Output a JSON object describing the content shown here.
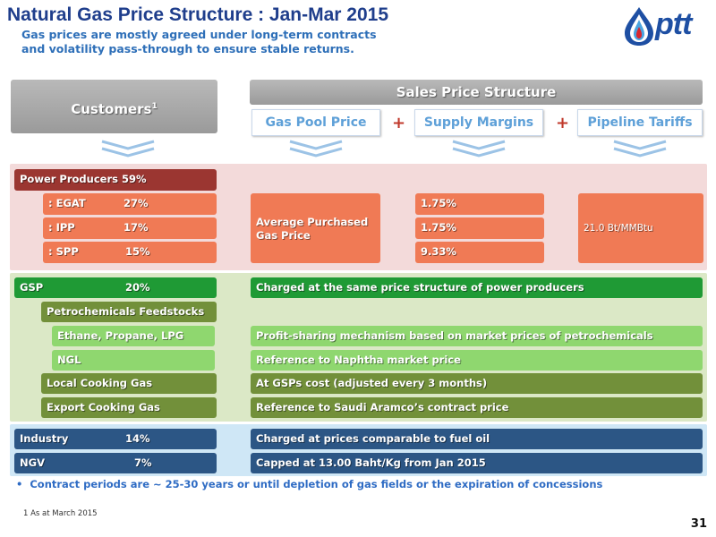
{
  "header": {
    "title": "Natural Gas Price Structure : Jan-Mar 2015",
    "subtitle_line1": "Gas prices are mostly agreed under long-term contracts",
    "subtitle_line2": "and volatility pass-through to ensure stable returns.",
    "logo_text": "ptt"
  },
  "columns": {
    "customers_label": "Customers",
    "customers_sup": "1",
    "sales_structure": "Sales Price Structure",
    "gas_pool": "Gas Pool Price",
    "supply_margins": "Supply Margins",
    "pipeline_tariffs": "Pipeline Tariffs",
    "plus": "+"
  },
  "power": {
    "header_label": "Power Producers 59%",
    "rows": [
      {
        "name": ": EGAT",
        "pct": "27%",
        "margin": "1.75%"
      },
      {
        "name": ": IPP",
        "pct": "17%",
        "margin": "1.75%"
      },
      {
        "name": ": SPP",
        "pct": "15%",
        "margin": "9.33%"
      }
    ],
    "pool_text_line1": "Average Purchased",
    "pool_text_line2": "Gas Price",
    "tariff": "21.0 Bt/MMBtu"
  },
  "gsp": {
    "gsp_name": "GSP",
    "gsp_pct": "20%",
    "gsp_desc": "Charged at the same price structure of power producers",
    "petro": "Petrochemicals Feedstocks",
    "ethane": "Ethane, Propane, LPG",
    "ethane_desc": "Profit-sharing mechanism based on market prices of petrochemicals",
    "ngl": "NGL",
    "ngl_desc": "Reference to Naphtha market price",
    "local": "Local Cooking Gas",
    "local_desc": "At GSPs cost (adjusted every 3 months)",
    "export": "Export Cooking Gas",
    "export_desc": "Reference to Saudi Aramco’s contract price"
  },
  "industry": {
    "industry_name": "Industry",
    "industry_pct": "14%",
    "industry_desc": "Charged at prices comparable to fuel oil",
    "ngv_name": "NGV",
    "ngv_pct": "7%",
    "ngv_desc": "Capped at 13.00 Baht/Kg from Jan 2015"
  },
  "bullet": "Contract periods are ~ 25-30 years or until depletion of gas fields or the expiration of concessions",
  "footnote": "1  As  at March 2015",
  "page_number": "31",
  "colors": {
    "title": "#1f3e8c",
    "power_band": "#f3dada",
    "gsp_band": "#dbe8c6",
    "industry_band": "#cfe7f6",
    "power_header": "#9b3631",
    "orange": "#f07a55",
    "bright_green": "#1f9a35",
    "olive_green": "#72903a",
    "light_green": "#8fd76f",
    "navy": "#2c5685"
  }
}
